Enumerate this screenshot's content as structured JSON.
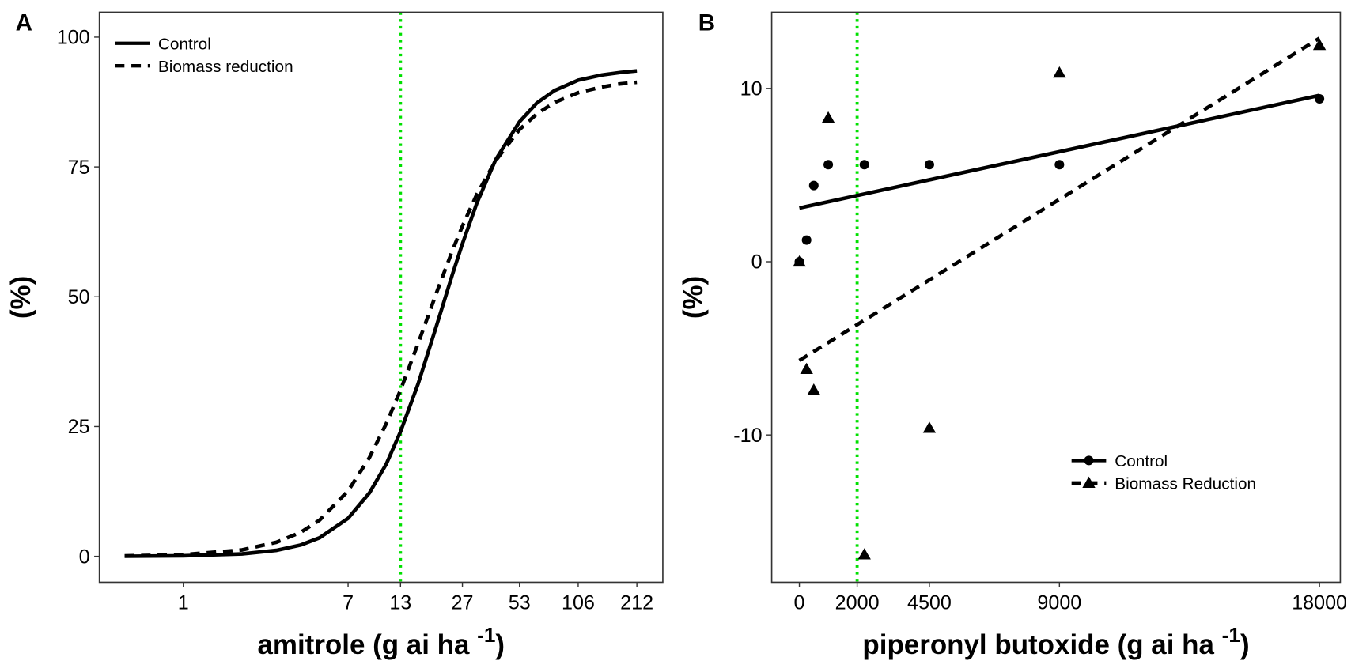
{
  "chart_data": [
    {
      "type": "line",
      "panel": "A",
      "ylabel": "(%)",
      "xlabel": [
        "amitrole (g ai ha ",
        "-1",
        ")"
      ],
      "xscale": "log",
      "xlim": [
        0.371,
        288
      ],
      "ylim": [
        -5,
        104.8
      ],
      "xticks": [
        1,
        7,
        13,
        27,
        53,
        106,
        212
      ],
      "yticks": [
        0,
        25,
        50,
        75,
        100
      ],
      "vline": {
        "value": 13,
        "color": "#00e000"
      },
      "legend": "upper left",
      "grid": false,
      "x": [
        0.5,
        1,
        2,
        3,
        4,
        5,
        7,
        9,
        11,
        13,
        16,
        20,
        24,
        27,
        32,
        40,
        53,
        65,
        80,
        106,
        140,
        175,
        212
      ],
      "series": [
        {
          "name": "Control",
          "color": "#000000",
          "dash": "solid",
          "values": [
            0.02,
            0.1,
            0.47,
            1.15,
            2.18,
            3.57,
            7.32,
            12.2,
            17.8,
            24.0,
            33.2,
            44.7,
            54.3,
            60.2,
            68.0,
            76.4,
            83.7,
            87.3,
            89.7,
            91.7,
            92.7,
            93.2,
            93.5
          ]
        },
        {
          "name": "Biomass reduction",
          "color": "#000000",
          "dash": "dashed",
          "values": [
            0.08,
            0.32,
            1.23,
            2.7,
            4.62,
            6.97,
            12.6,
            19.0,
            25.6,
            32.0,
            41.0,
            51.0,
            58.9,
            63.6,
            69.7,
            76.2,
            82.2,
            85.2,
            87.4,
            89.3,
            90.4,
            91.0,
            91.3
          ]
        }
      ]
    },
    {
      "type": "scatter",
      "panel": "B",
      "ylabel": "(%)",
      "xlabel": [
        "piperonyl butoxide (g ai ha ",
        "-1",
        ")"
      ],
      "xlim": [
        -957,
        18720
      ],
      "ylim": [
        -18.5,
        14.4
      ],
      "xticks": [
        0,
        2000,
        4500,
        9000,
        18000
      ],
      "yticks": [
        -10,
        0,
        10
      ],
      "vline": {
        "value": 2000,
        "color": "#00e000"
      },
      "legend": "lower right",
      "grid": false,
      "x": [
        0,
        250,
        500,
        1000,
        2250,
        4500,
        9000,
        18000
      ],
      "series": [
        {
          "name": "Control",
          "color": "#000000",
          "marker": "circle",
          "dash": "solid",
          "values": [
            0,
            1.25,
            4.4,
            5.6,
            5.6,
            5.6,
            5.6,
            9.4
          ],
          "fit": {
            "x": [
              0,
              18000
            ],
            "values": [
              3.1,
              9.6
            ]
          }
        },
        {
          "name": "Biomass Reduction",
          "color": "#000000",
          "marker": "triangle",
          "dash": "dashed",
          "values": [
            0,
            -6.2,
            -7.4,
            8.3,
            -16.9,
            -9.6,
            10.9,
            12.5
          ],
          "fit": {
            "x": [
              0,
              18000
            ],
            "values": [
              -5.7,
              12.9
            ]
          }
        }
      ]
    }
  ]
}
